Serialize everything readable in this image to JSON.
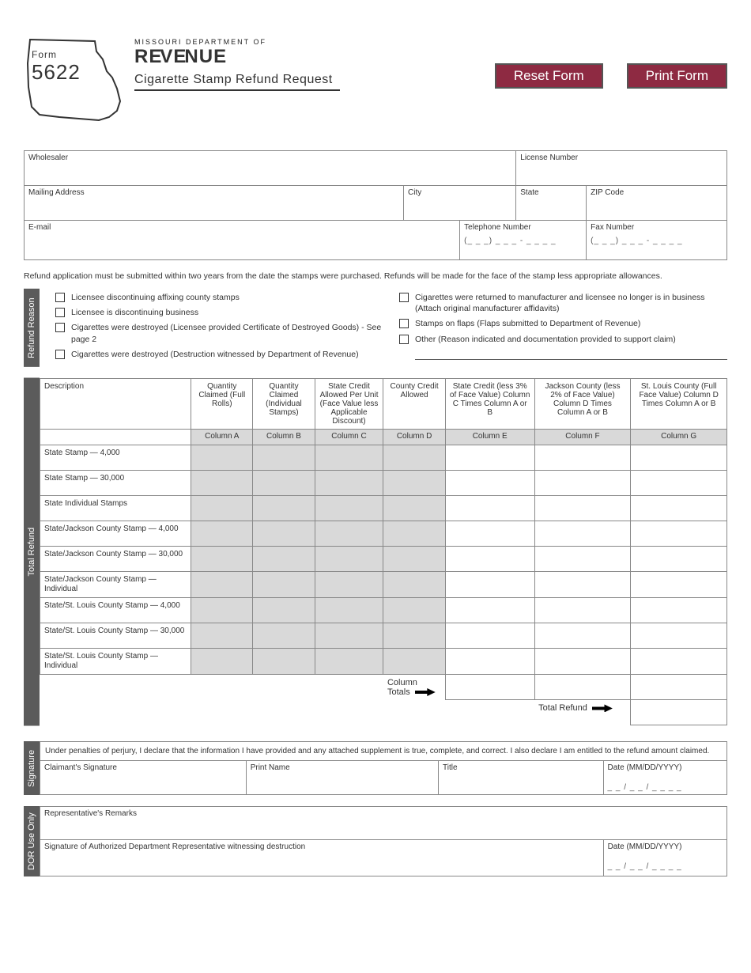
{
  "header": {
    "form_word": "Form",
    "form_number": "5622",
    "dept_sup": "MISSOURI DEPARTMENT OF",
    "dept_main": "REVENUE",
    "title": "Cigarette Stamp Refund Request",
    "reset_btn": "Reset Form",
    "print_btn": "Print Form"
  },
  "info": {
    "wholesaler": "Wholesaler",
    "license": "License Number",
    "mailing": "Mailing Address",
    "city": "City",
    "state": "State",
    "zip": "ZIP Code",
    "email": "E-mail",
    "telephone": "Telephone Number",
    "fax": "Fax Number",
    "phone_mask": "(_ _ _) _ _ _ - _ _ _ _"
  },
  "note": "Refund application must be submitted within two years from the date the stamps were purchased. Refunds will be made for the face of the stamp less appropriate allowances.",
  "sections": {
    "refund_reason": "Refund Reason",
    "total_refund": "Total Refund",
    "signature": "Signature",
    "dor": "DOR Use Only"
  },
  "reasons": {
    "left": [
      "Licensee discontinuing affixing county stamps",
      "Licensee is discontinuing business",
      "Cigarettes were destroyed (Licensee provided Certificate of Destroyed Goods) - See page 2",
      "Cigarettes were destroyed (Destruction witnessed by Department of Revenue)"
    ],
    "right": [
      "Cigarettes were returned to manufacturer and licensee no longer is in business (Attach original manufacturer affidavits)",
      "Stamps on flaps (Flaps submitted to Department of Revenue)",
      "Other (Reason indicated and documentation provided to support claim)"
    ]
  },
  "refund_table": {
    "headers": [
      "Description",
      "Quantity Claimed (Full Rolls)",
      "Quantity Claimed (Individual Stamps)",
      "State Credit Allowed Per Unit (Face Value less Applicable Discount)",
      "County Credit Allowed",
      "State Credit (less 3% of Face Value) Column C Times Column A or B",
      "Jackson County (less 2% of Face Value) Column D Times Column A or B",
      "St. Louis County (Full Face Value) Column D Times Column A or B"
    ],
    "col_labels": [
      "",
      "Column A",
      "Column B",
      "Column C",
      "Column D",
      "Column E",
      "Column F",
      "Column G"
    ],
    "rows": [
      {
        "desc": "State Stamp — 4,000",
        "shade_cd": true
      },
      {
        "desc": "State Stamp — 30,000",
        "shade_cd": true
      },
      {
        "desc": "State Individual Stamps",
        "shade_cd": true
      },
      {
        "desc": "State/Jackson County Stamp — 4,000",
        "shade_cd": true
      },
      {
        "desc": "State/Jackson County Stamp — 30,000",
        "shade_cd": true
      },
      {
        "desc": "State/Jackson County Stamp — Individual",
        "shade_cd": true
      },
      {
        "desc": "State/St. Louis County Stamp — 4,000",
        "shade_cd": true
      },
      {
        "desc": "State/St. Louis County Stamp — 30,000",
        "shade_cd": true
      },
      {
        "desc": "State/St. Louis County Stamp — Individual",
        "shade_cd": true
      }
    ],
    "column_totals_label": "Column Totals",
    "total_refund_label": "Total Refund"
  },
  "signature": {
    "declaration": "Under penalties of perjury, I declare that the information I have provided and any attached supplement is true, complete, and correct. I also declare I am entitled to the refund amount claimed.",
    "claimant": "Claimant's Signature",
    "print_name": "Print Name",
    "title": "Title",
    "date": "Date (MM/DD/YYYY)",
    "date_mask": "_ _ / _ _ / _ _ _ _"
  },
  "dor": {
    "remarks": "Representative's Remarks",
    "rep_sig": "Signature of Authorized Department Representative witnessing destruction",
    "date": "Date (MM/DD/YYYY)",
    "date_mask": "_ _ / _ _ / _ _ _ _"
  },
  "colors": {
    "button_bg": "#8e2a42",
    "vlabel_bg": "#5b5b5b",
    "shade": "#d9d9d9",
    "border": "#888888"
  },
  "col_widths_pct": [
    22,
    9,
    9,
    10,
    9,
    13,
    14,
    14
  ]
}
